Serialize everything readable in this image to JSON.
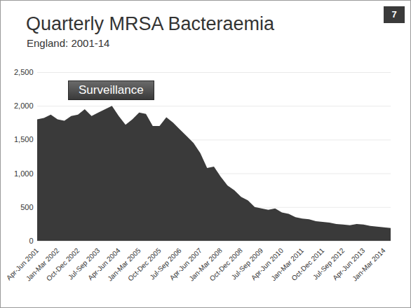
{
  "chart_data": {
    "type": "area",
    "title": "Quarterly MRSA Bacteraemia",
    "subtitle": "England: 2001-14",
    "page_number": "7",
    "annotations": [
      "Surveillance"
    ],
    "categories": [
      "Apr-Jun 2001",
      null,
      null,
      "Jan-Mar 2002",
      null,
      null,
      "Oct-Dec 2002",
      null,
      null,
      "Jul-Sep 2003",
      null,
      null,
      "Apr-Jun 2004",
      null,
      null,
      "Jan-Mar 2005",
      null,
      null,
      "Oct-Dec 2005",
      null,
      null,
      "Jul-Sep 2006",
      null,
      null,
      "Apr-Jun 2007",
      null,
      null,
      "Jan-Mar 2008",
      null,
      null,
      "Oct-Dec 2008",
      null,
      null,
      "Jul-Sep 2009",
      null,
      null,
      "Apr-Jun 2010",
      null,
      null,
      "Jan-Mar 2011",
      null,
      null,
      "Oct-Dec 2011",
      null,
      null,
      "Jul-Sep 2012",
      null,
      null,
      "Apr-Jun 2013",
      null,
      null,
      "Jan-Mar 2014",
      null
    ],
    "values": [
      1800,
      1820,
      1870,
      1800,
      1780,
      1850,
      1870,
      1950,
      1850,
      1900,
      1950,
      2000,
      1850,
      1720,
      1800,
      1900,
      1880,
      1700,
      1700,
      1830,
      1750,
      1650,
      1550,
      1450,
      1300,
      1080,
      1100,
      950,
      820,
      750,
      650,
      600,
      500,
      480,
      460,
      480,
      420,
      400,
      350,
      330,
      320,
      290,
      280,
      270,
      250,
      240,
      230,
      250,
      240,
      220,
      210,
      200,
      190
    ],
    "color": "#3a3a3a",
    "ylim": [
      0,
      2500
    ],
    "yticks": [
      0,
      500,
      1000,
      1500,
      2000,
      2500
    ],
    "grid": true
  }
}
